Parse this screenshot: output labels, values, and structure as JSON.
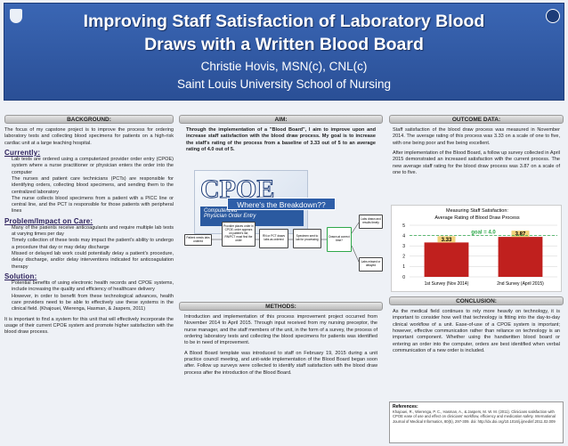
{
  "header": {
    "title_line1": "Improving Staff Satisfaction of Laboratory Blood",
    "title_line2": "Draws with a Written Blood Board",
    "author": "Christie Hovis, MSN(c), CNL(c)",
    "school": "Saint Louis University School of Nursing"
  },
  "background": {
    "heading": "BACKGROUND:",
    "intro": "The focus of my capstone project is to improve the process for ordering laboratory tests and collecting blood specimens for patients on a high-risk cardiac unit at a large teaching hospital.",
    "currently_heading": "Currently:",
    "currently": [
      "Lab tests are ordered using a computerized provider order entry (CPOE) system where a nurse practitioner or physician enters the order into the computer",
      "The nurses and patient care technicians (PCTs) are responsible for identifying orders, collecting blood specimens, and sending them to the centralized laboratory",
      "The nurse collects blood specimens from a patient with a PICC line or central line, and the PCT is responsible for those patients with peripheral lines"
    ],
    "problem_heading": "Problem/Impact on Care:",
    "problem": [
      "Many of the patients receive anticoagulants and require multiple lab tests at varying times per day",
      "Timely collection of these tests may impact the patient's ability to undergo a procedure that day or may delay discharge",
      "Missed or delayed lab work could potentially delay a patient's procedure, delay discharge, and/or delay interventions indicated for anticoagulation therapy"
    ],
    "solution_heading": "Solution:",
    "solution": [
      "Potential benefits of using electronic health records and CPOE systems, include increasing the quality and efficiency of healthcare delivery",
      "However, in order to benefit from these technological advances, health care providers need to be able to effectively use these systems in the clinical field. (Khajouei, Wierenga, Hasman, & Jaspers, 2011)"
    ],
    "closing": "It is important to find a system for this unit that will effectively incorporate the usage of their current CPOE system and promote higher satisfaction with the blood draw process."
  },
  "aim": {
    "heading": "AIM:",
    "text": "Through the implementation of a \"Blood Board\", I aim to improve upon and increase staff satisfaction with the blood draw process. My goal is to increase the staff's rating of the process from a baseline of 3.33 out of 5 to an average rating of 4.0 out of 5."
  },
  "image": {
    "big": "CPOE",
    "caption_line1": "Computerized",
    "caption_line2": "Physician Order Entry"
  },
  "flowchart": {
    "title": "Where's the Breakdown??",
    "nodes": [
      "Patient needs labs ordered",
      "Provider places order in CPOE; order appears on patient's list; RN/PCT must find the order",
      "RN or PCT draws labs as ordered",
      "Specimen sent to lab for processing",
      "Drawn at correct time?",
      "Labs drawn and results timely",
      "Labs missed or delayed"
    ]
  },
  "methods": {
    "heading": "METHODS:",
    "p1": "Introduction and implementation of this process improvement project occurred from November 2014 to April 2015. Through input received from my nursing preceptor, the nurse manager, and the staff members of the unit, in the form of a survey, the process of ordering laboratory tests and collecting the blood specimens for patients was identified to be in need of improvement.",
    "p2": "A Blood Board template was introduced to staff on February 19, 2015 during a unit practice council meeting, and unit-wide implementation of the Blood Board began soon after. Follow up surveys were collected to identify staff satisfaction with the blood draw process after the introduction of the Blood Board."
  },
  "outcome": {
    "heading": "OUTCOME DATA:",
    "p1": "Staff satisfaction of the blood draw process was measured in November 2014. The average rating of this process was 3.33 on a scale of one to five, with one being poor and five being excellent.",
    "p2": "After implementation of the Blood Board, a follow up survey collected in April 2015 demonstrated an increased satisfaction with the current process. The new average staff rating for the blood draw process was 3.87 on a scale of one to five."
  },
  "chart_data": {
    "type": "bar",
    "title": "Measuring Staff Satisfaction:",
    "subtitle": "Average Rating of Blood Draw Process",
    "categories": [
      "1st Survey (Nov 2014)",
      "2nd Survey (April 2015)"
    ],
    "values": [
      3.33,
      3.87
    ],
    "color": "#c0201e",
    "ylim": [
      0,
      5
    ],
    "yticks": [
      0,
      1,
      2,
      3,
      4,
      5
    ],
    "grid": true,
    "annotation": "goal = 4.0",
    "goal": 4.0,
    "goal_color": "#2ea84a"
  },
  "conclusion": {
    "heading": "CONCLUSION:",
    "text": "As the medical field continues to rely more heavily on technology, it is important to consider how well that technology is fitting into the day-to-day clinical workflow of a unit. Ease-of-use of a CPOE system is important; however, effective communication rather than reliance on technology is an important component. Whether using the handwritten blood board or entering an order into the computer, orders are best identified when verbal communication of a new order is included."
  },
  "references": {
    "heading": "References:",
    "text": "Khajouei, R., Wierenga, P. C., Hasman, A., & Jaspers, M. W. M. (2011). Clinicians satisfaction with CPOE ease of use and effect on clinicians' workflow, efficiency and medication safety. International Journal of Medical Informatics, 80(5), 297-309. doi: http://dx.doi.org/10.1016/j.ijmedinf.2011.02.009"
  }
}
